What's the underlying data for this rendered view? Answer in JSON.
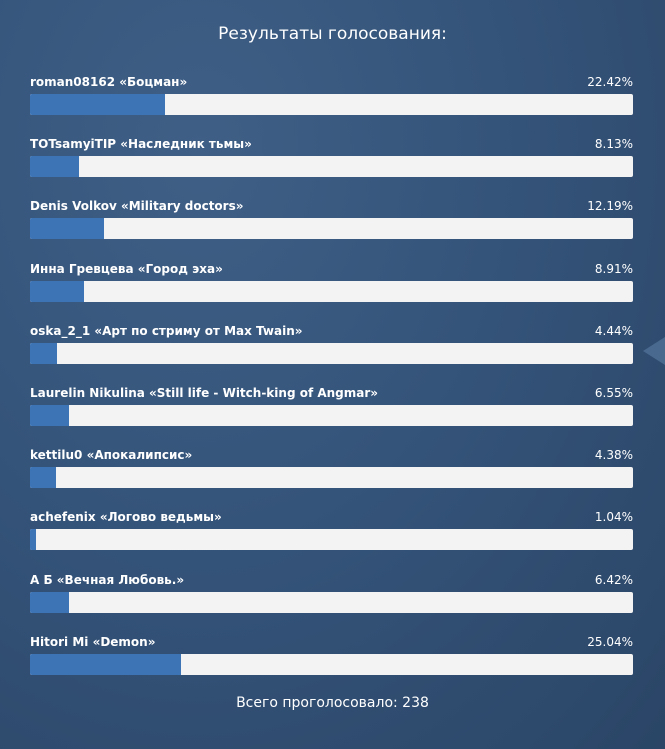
{
  "title": "Результаты голосования:",
  "total": "Всего проголосовало: 238",
  "colors": {
    "bar": "#3d74b6",
    "track": "#f3f3f3",
    "background": "#35547a"
  },
  "chart_data": {
    "type": "bar",
    "orientation": "horizontal",
    "xlim": [
      0,
      100
    ],
    "categories": [
      "roman08162 «Боцман»",
      "TOTsamyiTIP «Наследник тьмы»",
      "Denis Volkov «Military doctors»",
      "Инна Гревцева «Город эха»",
      "oska_2_1 «Арт по стриму от Max Twain»",
      "Laurelin Nikulina «Still life - Witch-king of Angmar»",
      "kettilu0 «Апокалипсис»",
      "achefenix «Логово ведьмы»",
      "А Б «Вечная Любовь.»",
      "Hitori Mi «Demon»"
    ],
    "values": [
      22.42,
      8.13,
      12.19,
      8.91,
      4.44,
      6.55,
      4.38,
      1.04,
      6.42,
      25.04
    ],
    "value_labels": [
      "22.42%",
      "8.13%",
      "12.19%",
      "8.91%",
      "4.44%",
      "6.55%",
      "4.38%",
      "1.04%",
      "6.42%",
      "25.04%"
    ]
  }
}
